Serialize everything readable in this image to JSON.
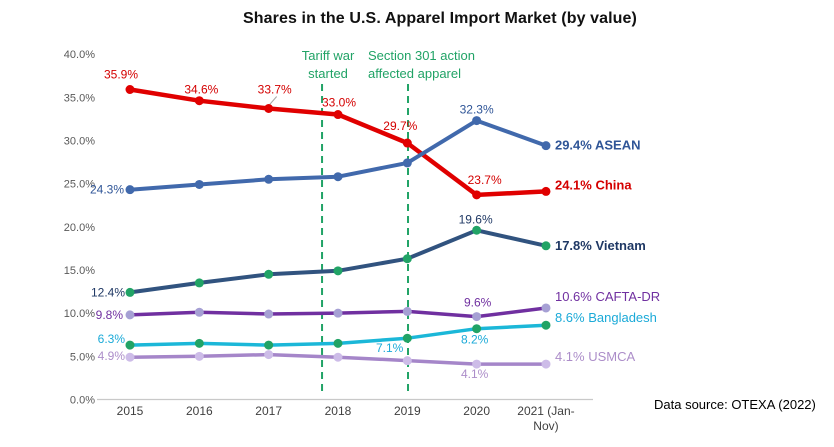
{
  "title": "Shares in the U.S. Apparel Import Market (by value)",
  "source_note": "Data source: OTEXA (2022)",
  "chart_data": {
    "type": "line",
    "title": "Shares in the U.S. Apparel Import Market (by value)",
    "xlabel": "",
    "ylabel": "",
    "ylim": [
      0,
      40
    ],
    "ytick_step": 5,
    "ytick_suffix": "%",
    "grid": false,
    "legend_position": "end-of-line-labels",
    "categories": [
      "2015",
      "2016",
      "2017",
      "2018",
      "2019",
      "2020",
      "2021 (Jan-Nov)"
    ],
    "categories_display": [
      [
        "2015"
      ],
      [
        "2016"
      ],
      [
        "2017"
      ],
      [
        "2018"
      ],
      [
        "2019"
      ],
      [
        "2020"
      ],
      [
        "2021 (Jan-",
        "Nov)"
      ]
    ],
    "axis_colors": {
      "tick_label": "#595959",
      "x_label": "#3f3f3f",
      "axis_line": "#c9c9c9"
    },
    "event_lines": [
      {
        "label_lines": [
          "Tariff war",
          "started"
        ],
        "x_index": 2.77,
        "color": "#21A366",
        "label_anchor": "middle",
        "label_dx": 6
      },
      {
        "label_lines": [
          "Section 301 action",
          "affected apparel"
        ],
        "x_index": 4.01,
        "color": "#21A366",
        "label_anchor": "start",
        "label_dx": -40
      }
    ],
    "series": [
      {
        "name": "China",
        "color": "#E00000",
        "marker_color": "#E00000",
        "label_color": "#D40000",
        "width": 4.5,
        "end_label": "24.1% China",
        "end_bold": true,
        "end_dy": -6,
        "values": [
          35.9,
          34.6,
          33.7,
          33.0,
          29.7,
          23.7,
          24.1
        ],
        "point_labels": [
          {
            "i": 0,
            "dx": -9,
            "dy": -11,
            "anchor": "middle"
          },
          {
            "i": 1,
            "dx": 2,
            "dy": -7,
            "anchor": "middle"
          },
          {
            "i": 2,
            "dx": 6,
            "dy": -15,
            "anchor": "middle",
            "leader": true
          },
          {
            "i": 3,
            "dx": 1,
            "dy": -8,
            "anchor": "middle"
          },
          {
            "i": 4,
            "dx": -7,
            "dy": -13,
            "anchor": "middle"
          },
          {
            "i": 5,
            "dx": 8,
            "dy": -11,
            "anchor": "middle"
          }
        ]
      },
      {
        "name": "ASEAN",
        "color": "#4169AC",
        "marker_color": "#4169AC",
        "label_color": "#2F5597",
        "width": 4,
        "end_label": "29.4% ASEAN",
        "end_bold": true,
        "end_dy": 0,
        "values": [
          24.3,
          24.9,
          25.5,
          25.8,
          27.4,
          32.3,
          29.4
        ],
        "point_labels": [
          {
            "i": 0,
            "dx": -6,
            "dy": 4,
            "anchor": "end"
          },
          {
            "i": 5,
            "dx": 0,
            "dy": -7,
            "anchor": "middle"
          }
        ]
      },
      {
        "name": "Vietnam",
        "color": "#31537F",
        "marker_color": "#21A366",
        "label_color": "#1F3864",
        "width": 4,
        "end_label": "17.8% Vietnam",
        "end_bold": true,
        "end_dy": 0,
        "values": [
          12.4,
          13.5,
          14.5,
          14.9,
          16.3,
          19.6,
          17.8
        ],
        "point_labels": [
          {
            "i": 0,
            "dx": -5,
            "dy": 4,
            "anchor": "end"
          },
          {
            "i": 5,
            "dx": -1,
            "dy": -7,
            "anchor": "middle"
          }
        ]
      },
      {
        "name": "CAFTA-DR",
        "color": "#7030A0",
        "marker_color": "#A6A0D4",
        "label_color": "#7030A0",
        "width": 3.5,
        "end_label": "10.6% CAFTA-DR",
        "end_bold": false,
        "end_dy": -11,
        "values": [
          9.8,
          10.1,
          9.9,
          10.0,
          10.2,
          9.6,
          10.6
        ],
        "point_labels": [
          {
            "i": 0,
            "dx": -7,
            "dy": 4,
            "anchor": "end"
          },
          {
            "i": 5,
            "dx": 1,
            "dy": -10,
            "anchor": "middle"
          }
        ]
      },
      {
        "name": "Bangladesh",
        "color": "#1BB7D8",
        "marker_color": "#21A366",
        "label_color": "#1BAAD8",
        "width": 3.5,
        "end_label": "8.6% Bangladesh",
        "end_bold": false,
        "end_dy": -7,
        "values": [
          6.3,
          6.5,
          6.3,
          6.5,
          7.1,
          8.2,
          8.6
        ],
        "point_labels": [
          {
            "i": 0,
            "dx": -5,
            "dy": -2,
            "anchor": "end"
          },
          {
            "i": 4,
            "dx": -4,
            "dy": 14,
            "anchor": "end"
          },
          {
            "i": 5,
            "dx": -2,
            "dy": 15,
            "anchor": "middle"
          }
        ]
      },
      {
        "name": "USMCA",
        "color": "#A586C9",
        "marker_color": "#CDBCE8",
        "label_color": "#AC8DC9",
        "width": 3.5,
        "end_label": "4.1% USMCA",
        "end_bold": false,
        "end_dy": -7,
        "values": [
          4.9,
          5.0,
          5.2,
          4.9,
          4.5,
          4.1,
          4.1
        ],
        "point_labels": [
          {
            "i": 0,
            "dx": -5,
            "dy": 3,
            "anchor": "end"
          },
          {
            "i": 5,
            "dx": -2,
            "dy": 14,
            "anchor": "middle"
          }
        ]
      }
    ]
  }
}
